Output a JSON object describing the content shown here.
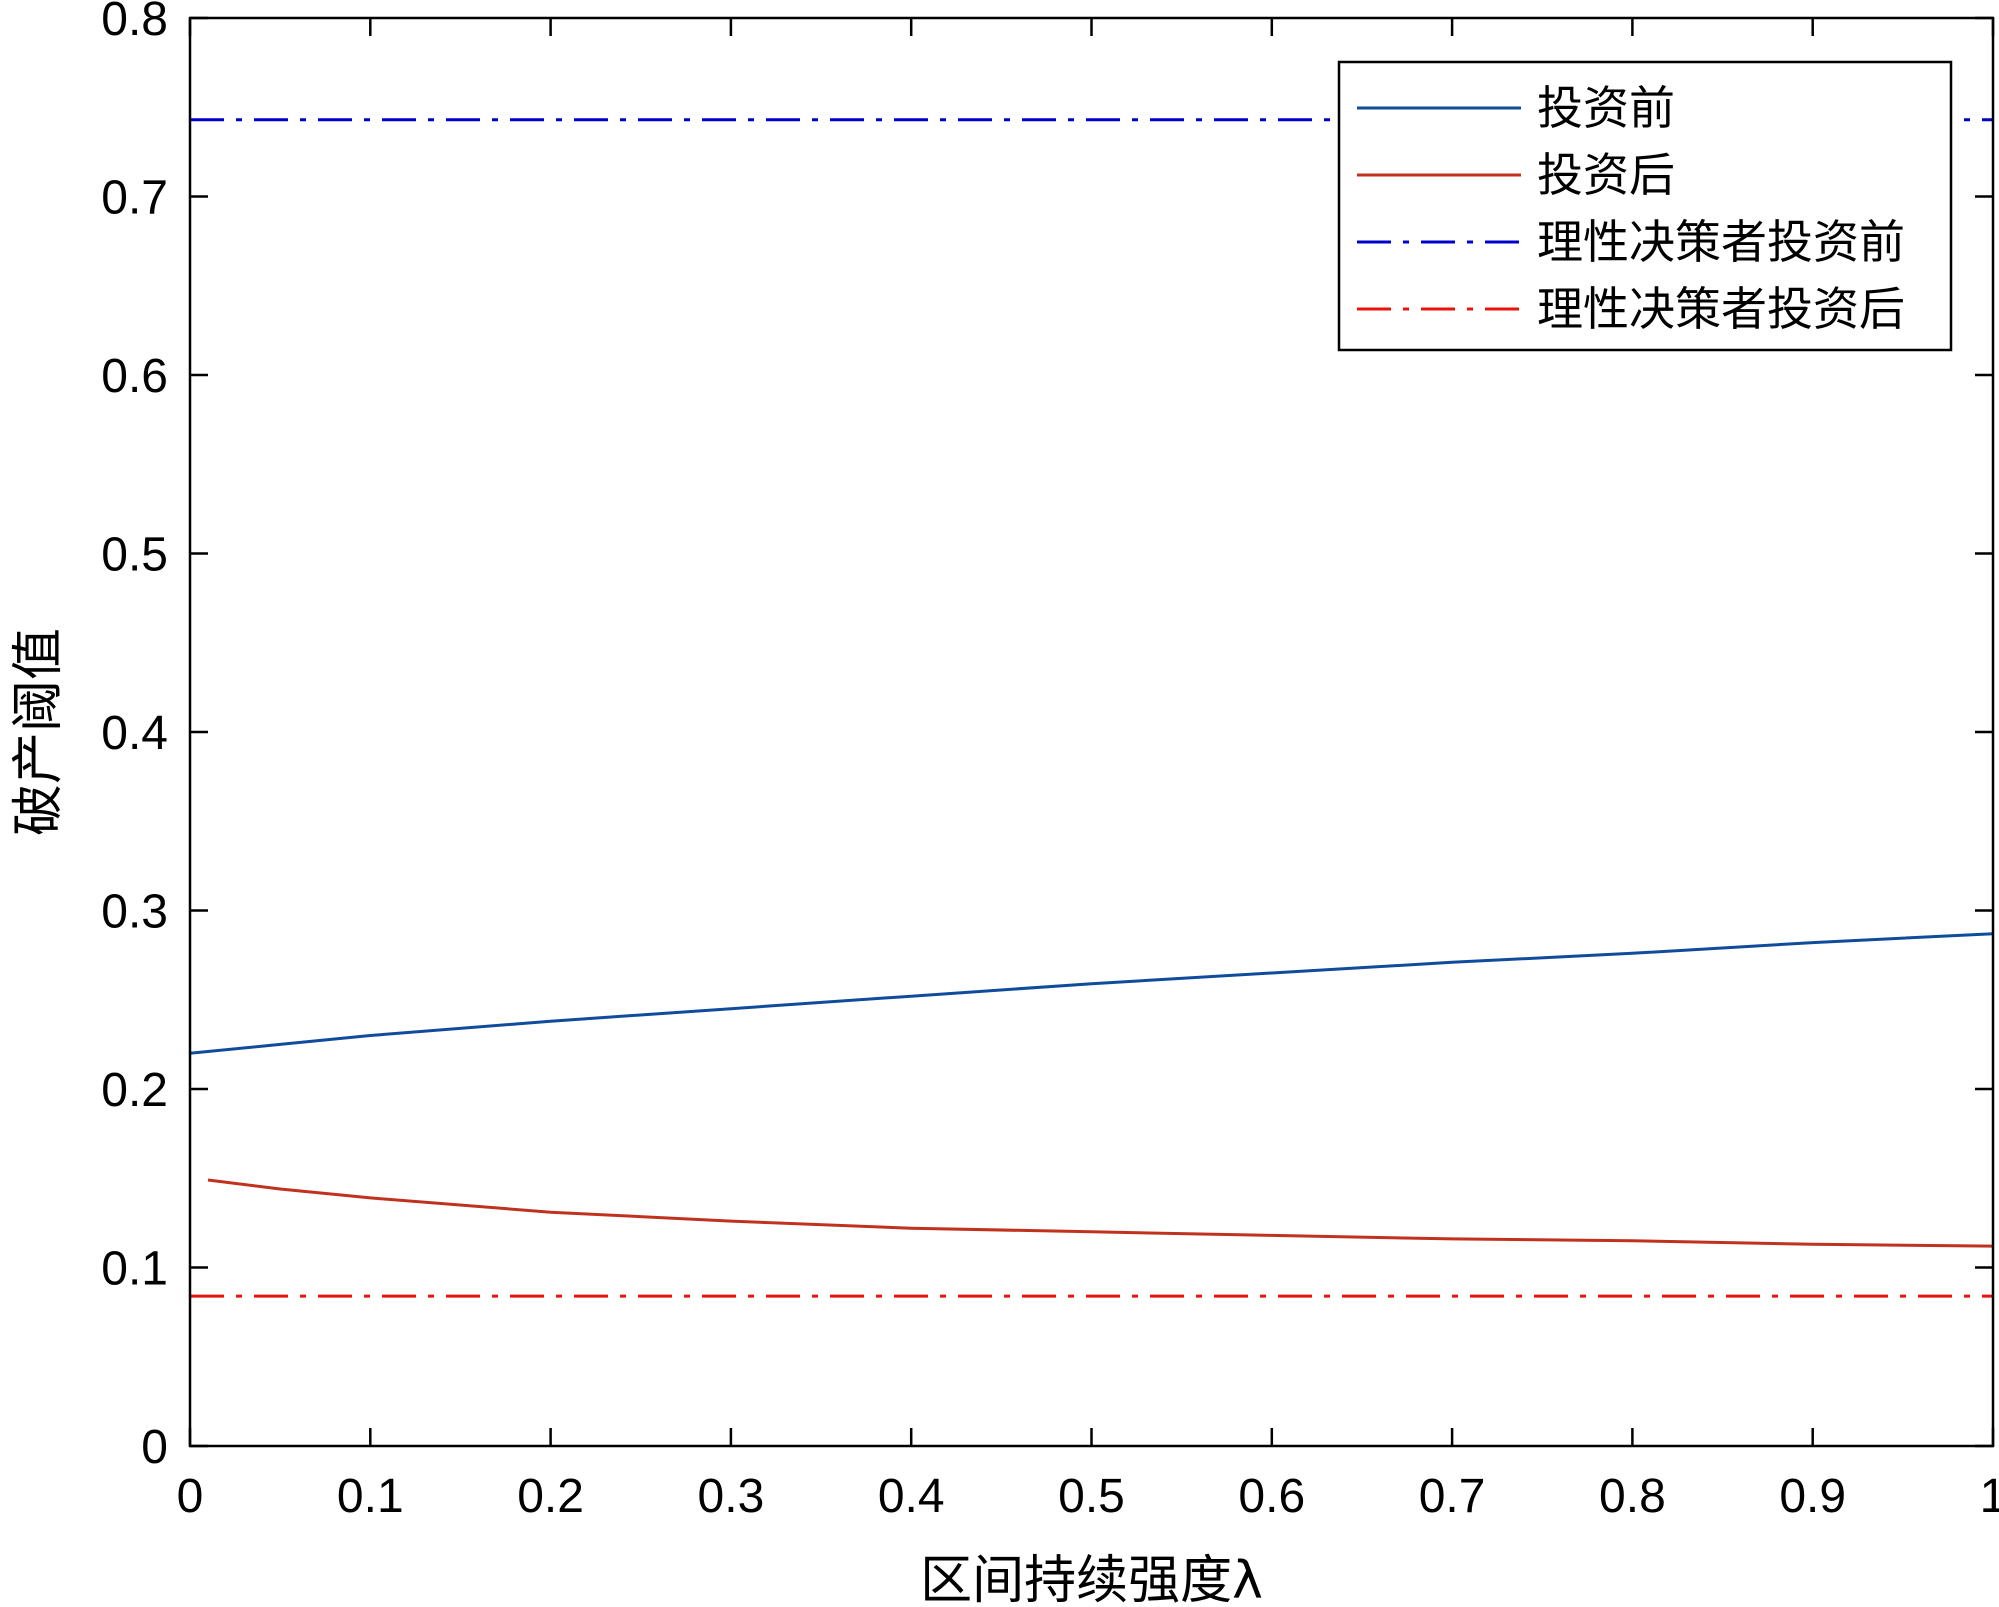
{
  "chart_data": {
    "type": "line",
    "title": "",
    "xlabel": "区间持续强度λ",
    "ylabel": "破产阈值",
    "xlim": [
      0,
      1
    ],
    "ylim": [
      0,
      0.8
    ],
    "xticks": [
      0,
      0.1,
      0.2,
      0.3,
      0.4,
      0.5,
      0.6,
      0.7,
      0.8,
      0.9,
      1
    ],
    "yticks": [
      0,
      0.1,
      0.2,
      0.3,
      0.4,
      0.5,
      0.6,
      0.7,
      0.8
    ],
    "xtick_labels": [
      "0",
      "0.1",
      "0.2",
      "0.3",
      "0.4",
      "0.5",
      "0.6",
      "0.7",
      "0.8",
      "0.9",
      "1"
    ],
    "ytick_labels": [
      "0",
      "0.1",
      "0.2",
      "0.3",
      "0.4",
      "0.5",
      "0.6",
      "0.7",
      "0.8"
    ],
    "grid": false,
    "legend_position": "top-right",
    "series": [
      {
        "name": "投资前",
        "color": "#0f4c9c",
        "style": "solid",
        "x": [
          0,
          0.05,
          0.1,
          0.2,
          0.3,
          0.4,
          0.5,
          0.6,
          0.7,
          0.8,
          0.9,
          1
        ],
        "y": [
          0.22,
          0.225,
          0.23,
          0.238,
          0.245,
          0.252,
          0.259,
          0.265,
          0.271,
          0.276,
          0.282,
          0.287
        ]
      },
      {
        "name": "投资后",
        "color": "#c0321e",
        "style": "solid",
        "x": [
          0.01,
          0.05,
          0.1,
          0.2,
          0.3,
          0.4,
          0.5,
          0.6,
          0.7,
          0.8,
          0.9,
          1
        ],
        "y": [
          0.149,
          0.144,
          0.139,
          0.131,
          0.126,
          0.122,
          0.12,
          0.118,
          0.116,
          0.115,
          0.113,
          0.112
        ]
      },
      {
        "name": "理性决策者投资前",
        "color": "#0000cc",
        "style": "dashdot",
        "x": [
          0,
          1
        ],
        "y": [
          0.743,
          0.743
        ]
      },
      {
        "name": "理性决策者投资后",
        "color": "#e8140c",
        "style": "dashdot",
        "x": [
          0,
          1
        ],
        "y": [
          0.084,
          0.084
        ]
      }
    ]
  }
}
